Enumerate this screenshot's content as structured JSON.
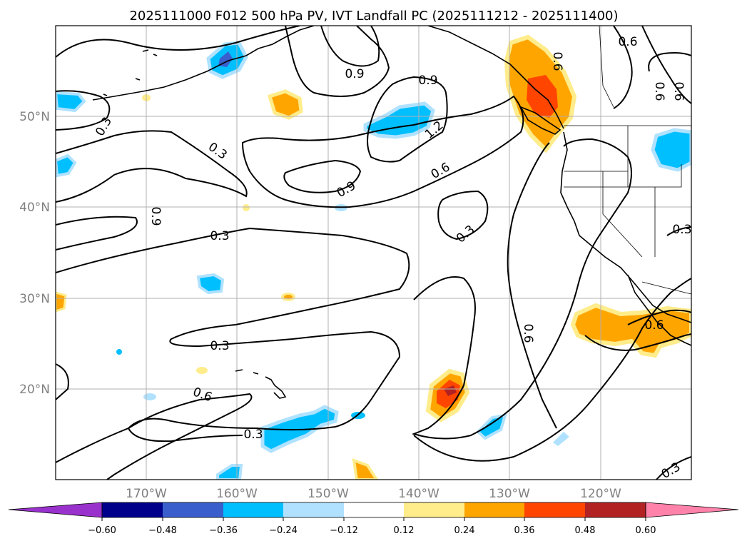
{
  "title": "2025111000 F012 500 hPa PV, IVT Landfall PC (2025111212 - 2025111400)",
  "map": {
    "lon_labels": [
      "170°W",
      "160°W",
      "150°W",
      "140°W",
      "130°W",
      "120°W"
    ],
    "lat_labels": [
      "50°N",
      "40°N",
      "30°N",
      "20°N"
    ]
  },
  "contour_labels": [
    "0.6",
    "0.3",
    "0.9",
    "0.9",
    "0.9",
    "1.2",
    "0.3",
    "0.3",
    "0.6",
    "0.9",
    "0.6",
    "0.3",
    "0.3",
    "0.3",
    "0.6",
    "0.6",
    "0.3",
    "0.6",
    "0.3",
    "0.6",
    "0.6"
  ],
  "colorbar": {
    "ticks": [
      "−0.60",
      "−0.48",
      "−0.36",
      "−0.24",
      "−0.12",
      "0.12",
      "0.24",
      "0.36",
      "0.48",
      "0.60"
    ],
    "colors": [
      "#9932cc",
      "#00008b",
      "#3a5fcd",
      "#00bfff",
      "#b0e2ff",
      "#ffffff",
      "#ffec8b",
      "#ffa500",
      "#ff4500",
      "#b22222",
      "#ff82ab"
    ]
  }
}
